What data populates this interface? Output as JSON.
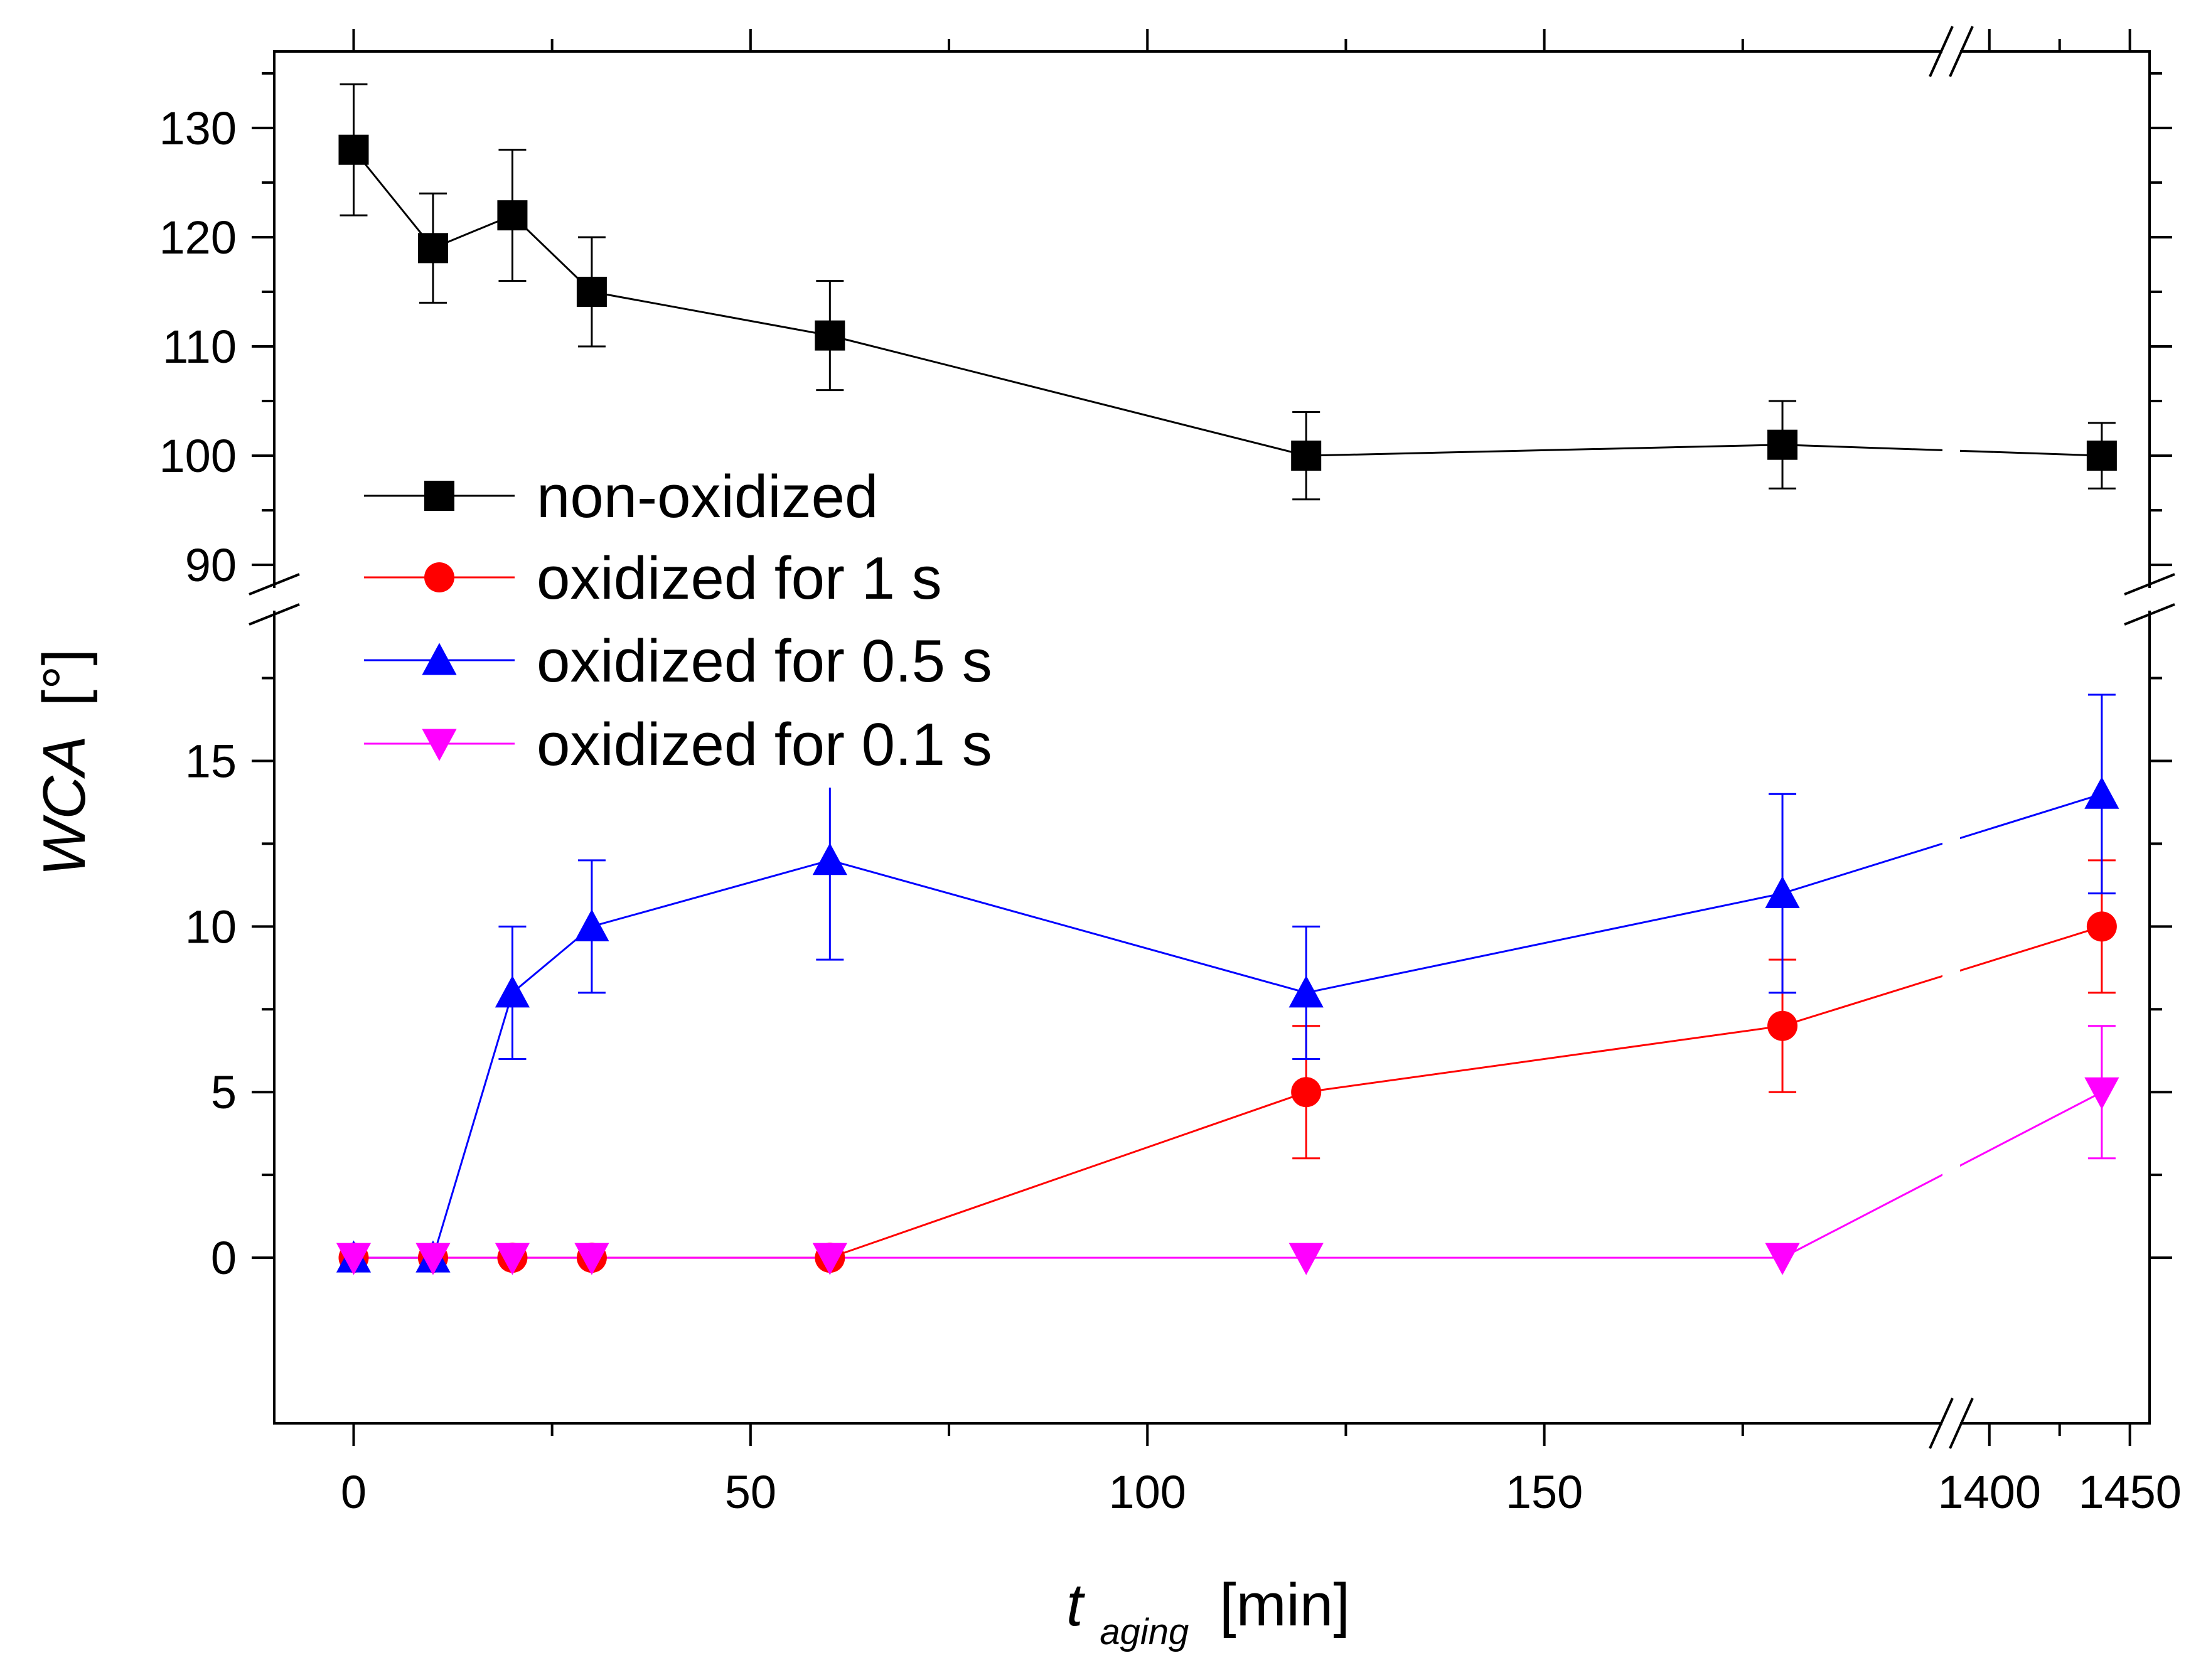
{
  "chart_data": {
    "type": "line",
    "title": "",
    "ylabel": "WCA",
    "ylabel_unit": "[°]",
    "xlabel_var": "t",
    "xlabel_sub": "aging",
    "xlabel_unit": "[min]",
    "x_break": {
      "left_range": [
        -10,
        200
      ],
      "right_range": [
        1390,
        1457
      ]
    },
    "y_break": {
      "lower_range": [
        -5,
        19.5
      ],
      "upper_range": [
        88,
        137
      ]
    },
    "x_ticks_left": [
      0,
      50,
      100,
      150
    ],
    "x_ticks_right": [
      1400,
      1450
    ],
    "y_ticks_lower": [
      0,
      5,
      10,
      15
    ],
    "y_ticks_upper": [
      90,
      100,
      110,
      120,
      130
    ],
    "legend_position": "center-left",
    "series": [
      {
        "name": "non-oxidized",
        "color": "#000000",
        "marker": "square",
        "x": [
          0,
          10,
          20,
          30,
          60,
          120,
          180,
          1440
        ],
        "values": [
          128,
          119,
          122,
          115,
          111,
          100,
          101,
          100
        ],
        "errors": [
          6,
          5,
          6,
          5,
          5,
          4,
          4,
          3
        ]
      },
      {
        "name": "oxidized for 1 s",
        "color": "#ff0000",
        "marker": "circle",
        "x": [
          0,
          10,
          20,
          30,
          60,
          120,
          180,
          1440
        ],
        "values": [
          0,
          0,
          0,
          0,
          0,
          5,
          7,
          10
        ],
        "errors": [
          0,
          0,
          0,
          0,
          0,
          2,
          2,
          2
        ]
      },
      {
        "name": "oxidized for 0.5 s",
        "color": "#0000ff",
        "marker": "triangle-up",
        "x": [
          0,
          10,
          20,
          30,
          60,
          120,
          180,
          1440
        ],
        "values": [
          0,
          0,
          8,
          10,
          12,
          8,
          11,
          14
        ],
        "errors": [
          0,
          0,
          2,
          2,
          3,
          2,
          3,
          3
        ]
      },
      {
        "name": "oxidized for 0.1 s",
        "color": "#ff00ff",
        "marker": "triangle-down",
        "x": [
          0,
          10,
          20,
          30,
          60,
          120,
          180,
          1440
        ],
        "values": [
          0,
          0,
          0,
          0,
          0,
          0,
          0,
          5
        ],
        "errors": [
          0,
          0,
          0,
          0,
          0,
          0,
          0,
          2
        ]
      }
    ]
  }
}
